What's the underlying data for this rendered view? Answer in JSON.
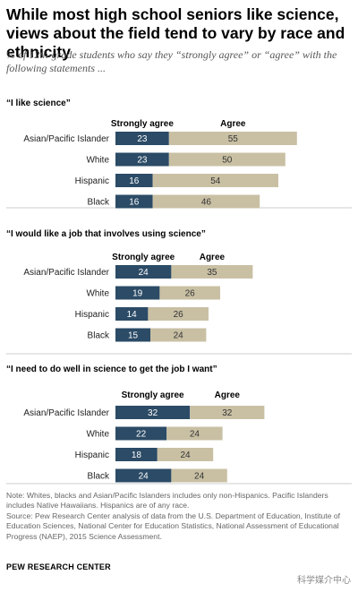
{
  "title": "While most high school seniors like science, views about the field tend to vary by race and ethnicity",
  "subtitle": "% of 12th-grade students who say they “strongly agree” or “agree” with the following statements ...",
  "note": "Note:  Whites, blacks and Asian/Pacific Islanders includes only non-Hispanics. Pacific Islanders includes Native Hawaiians. Hispanics are of any race.\nSource: Pew Research Center analysis of data from the U.S. Department of Education, Institute of Education Sciences, National Center for Education Statistics, National Assessment of Educational Progress (NAEP), 2015 Science Assessment.",
  "source": "PEW RESEARCH CENTER",
  "watermark": "科学媒介中心",
  "colors": {
    "strongly_agree": "#2b4b66",
    "agree": "#c9c0a4",
    "label_light": "#ffffff",
    "label_dark": "#333333"
  },
  "chart_data": [
    {
      "type": "bar",
      "stacked": true,
      "orientation": "horizontal",
      "title": "“I like science”",
      "categories": [
        "Asian/Pacific Islander",
        "White",
        "Hispanic",
        "Black"
      ],
      "series": [
        {
          "name": "Strongly agree",
          "values": [
            23,
            23,
            16,
            16
          ]
        },
        {
          "name": "Agree",
          "values": [
            55,
            50,
            54,
            46
          ]
        }
      ]
    },
    {
      "type": "bar",
      "stacked": true,
      "orientation": "horizontal",
      "title": "“I would like a job that involves  using science”",
      "categories": [
        "Asian/Pacific Islander",
        "White",
        "Hispanic",
        "Black"
      ],
      "series": [
        {
          "name": "Strongly agree",
          "values": [
            24,
            19,
            14,
            15
          ]
        },
        {
          "name": "Agree",
          "values": [
            35,
            26,
            26,
            24
          ]
        }
      ]
    },
    {
      "type": "bar",
      "stacked": true,
      "orientation": "horizontal",
      "title": "“I need to do well in science to get the job I want”",
      "categories": [
        "Asian/Pacific Islander",
        "White",
        "Hispanic",
        "Black"
      ],
      "series": [
        {
          "name": "Strongly agree",
          "values": [
            32,
            22,
            18,
            24
          ]
        },
        {
          "name": "Agree",
          "values": [
            32,
            24,
            24,
            24
          ]
        }
      ]
    }
  ]
}
